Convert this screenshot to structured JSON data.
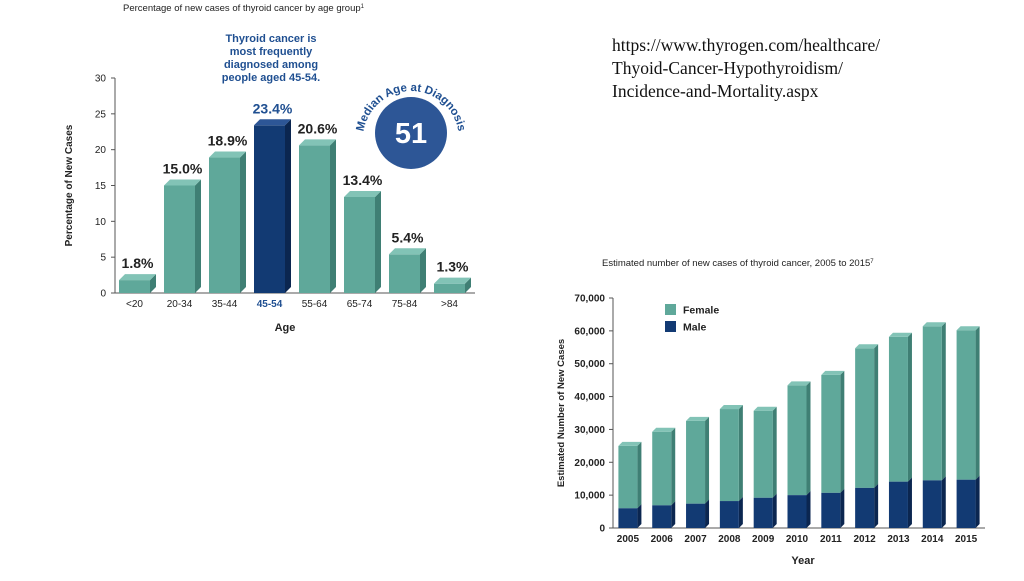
{
  "url_text": {
    "lines": [
      "https://www.thyrogen.com/healthcare/",
      "Thyoid-Cancer-Hypothyroidism/",
      "Incidence-and-Mortality.aspx"
    ]
  },
  "colors": {
    "teal": "#5fa89a",
    "teal_top": "#82c3b6",
    "teal_side": "#3f7f74",
    "navy": "#123a73",
    "navy_top": "#2d5696",
    "navy_side": "#0b2650",
    "highlight_text": "#1f4f91",
    "text": "#222222"
  },
  "chart_data": [
    {
      "type": "bar",
      "title": "Percentage of new cases of thyroid cancer by age group",
      "title_sup": "1",
      "xlabel": "Age",
      "ylabel": "Percentage of New Cases",
      "ylim": [
        0,
        30
      ],
      "yticks": [
        "0",
        "5",
        "10",
        "15",
        "20",
        "25",
        "30"
      ],
      "categories": [
        "<20",
        "20-34",
        "35-44",
        "45-54",
        "55-64",
        "65-74",
        "75-84",
        ">84"
      ],
      "values": [
        1.8,
        15.0,
        18.9,
        23.4,
        20.6,
        13.4,
        5.4,
        1.3
      ],
      "value_labels": [
        "1.8%",
        "15.0%",
        "18.9%",
        "23.4%",
        "20.6%",
        "13.4%",
        "5.4%",
        "1.3%"
      ],
      "highlight_index": 3,
      "annotation_lines": [
        "Thyroid cancer is",
        "most frequently",
        "diagnosed among",
        "people aged 45-54."
      ],
      "median_badge": {
        "label": "Median Age at Diagnosis",
        "value": "51"
      },
      "grid": false
    },
    {
      "type": "bar",
      "stacked": true,
      "title": "Estimated number of new cases of thyroid cancer, 2005 to 2015",
      "title_sup": "7",
      "xlabel": "Year",
      "ylabel": "Estimated Number of New Cases",
      "ylim": [
        0,
        70000
      ],
      "yticks": [
        "0",
        "10,000",
        "20,000",
        "30,000",
        "40,000",
        "50,000",
        "60,000",
        "70,000"
      ],
      "categories": [
        "2005",
        "2006",
        "2007",
        "2008",
        "2009",
        "2010",
        "2011",
        "2012",
        "2013",
        "2014",
        "2015"
      ],
      "series": [
        {
          "name": "Male",
          "values": [
            6000,
            6900,
            7400,
            8200,
            9200,
            10000,
            10700,
            12200,
            14100,
            14500,
            14700
          ]
        },
        {
          "name": "Female",
          "values": [
            19000,
            22400,
            25200,
            28000,
            26500,
            33400,
            35900,
            42500,
            44100,
            46900,
            45500
          ]
        }
      ],
      "legend_position": "top-left",
      "grid": false
    }
  ]
}
